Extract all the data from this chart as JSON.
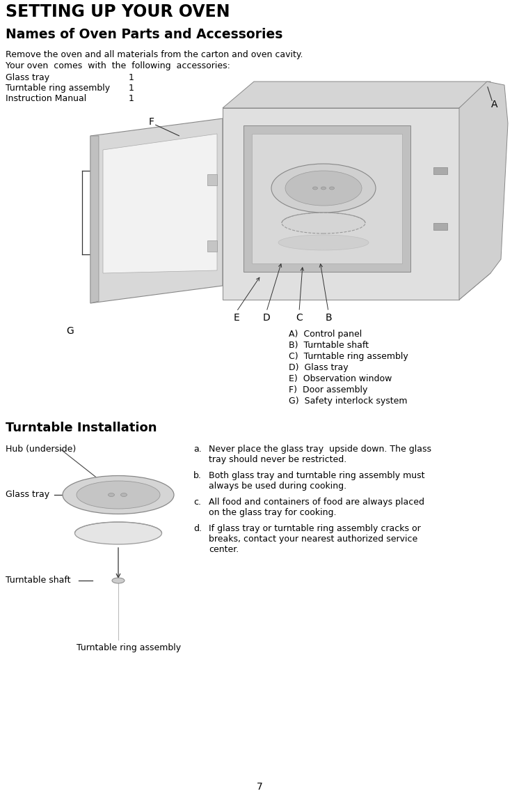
{
  "title1": "SETTING UP YOUR OVEN",
  "title2": "Names of Oven Parts and Accessories",
  "intro1": "Remove the oven and all materials from the carton and oven cavity.",
  "intro2": "Your oven  comes  with  the  following  accessories:",
  "accessories": [
    [
      "Glass tray",
      "1"
    ],
    [
      "Turntable ring assembly",
      "1"
    ],
    [
      "Instruction Manual",
      "1"
    ]
  ],
  "parts_list": [
    "A)  Control panel",
    "B)  Turntable shaft",
    "C)  Turntable ring assembly",
    "D)  Glass tray",
    "E)  Observation window",
    "F)  Door assembly",
    "G)  Safety interlock system"
  ],
  "section2_title": "Turntable Installation",
  "diagram_labels": {
    "hub": "Hub (underside)",
    "glass_tray": "Glass tray",
    "turntable_shaft": "Turntable shaft",
    "turntable_ring": "Turntable ring assembly"
  },
  "instr_letters": [
    "a.",
    "b.",
    "c.",
    "d."
  ],
  "instr_texts": [
    "Never place the glass tray  upside down. The glass\ntray should never be restricted.",
    "Both glass tray and turntable ring assembly must\nalways be used during cooking.",
    "All food and containers of food are always placed\non the glass tray for cooking.",
    "If glass tray or turntable ring assembly cracks or\nbreaks, contact your nearest authorized service\ncenter."
  ],
  "page_number": "7",
  "bg_color": "#ffffff",
  "text_color": "#000000"
}
